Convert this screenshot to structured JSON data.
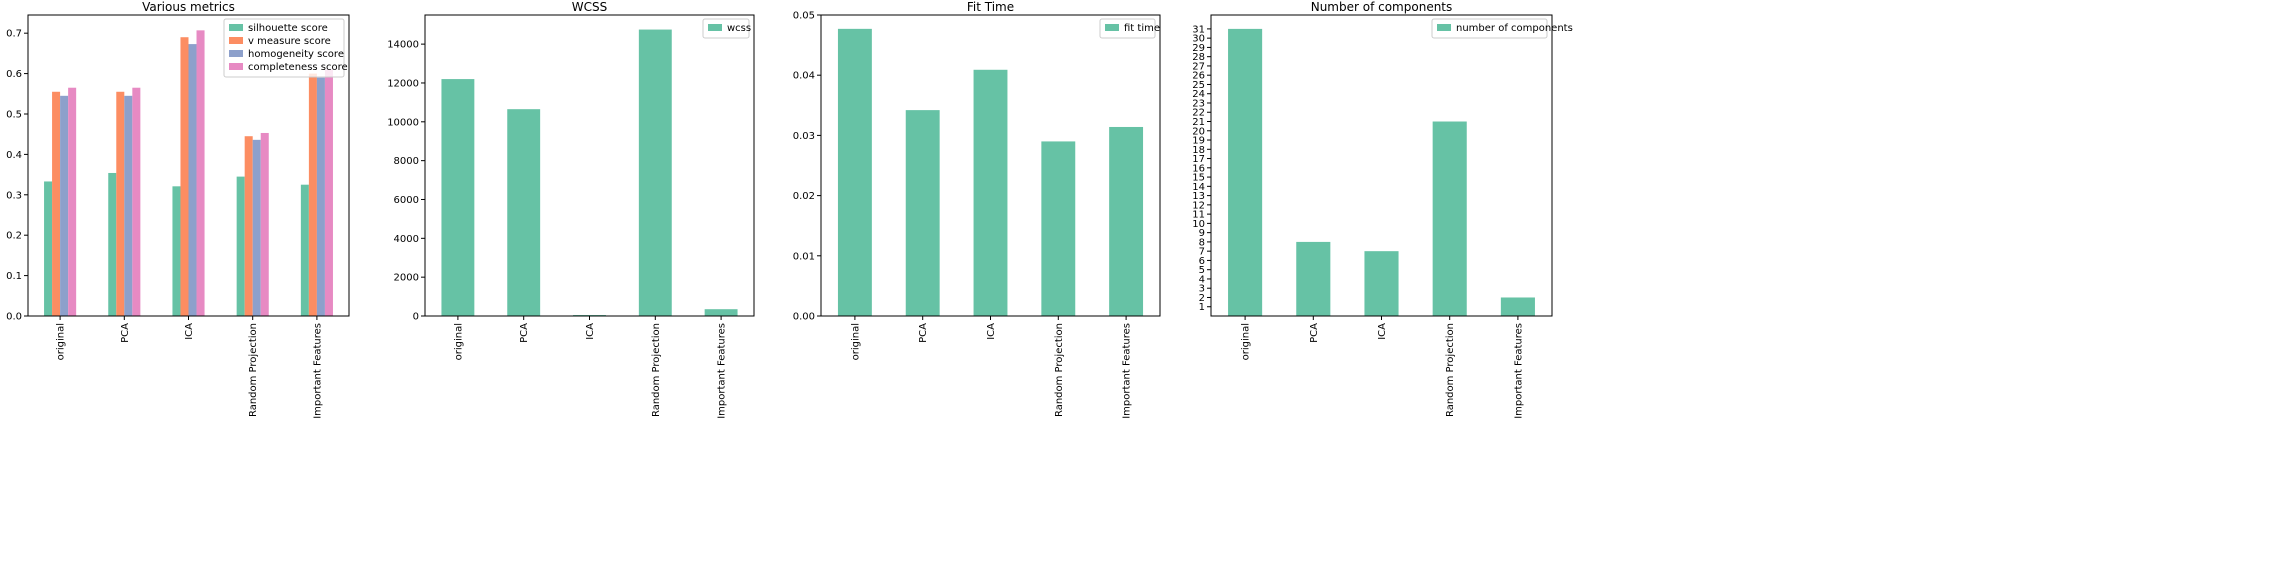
{
  "chart_data": [
    {
      "type": "bar",
      "title": "Various metrics",
      "categories": [
        "original",
        "PCA",
        "ICA",
        "Random Projection",
        "Important Features"
      ],
      "series": [
        {
          "name": "silhouette score",
          "color": "#66c2a5",
          "values": [
            0.333,
            0.354,
            0.321,
            0.345,
            0.325
          ]
        },
        {
          "name": "v measure score",
          "color": "#fc8d62",
          "values": [
            0.555,
            0.555,
            0.69,
            0.445,
            0.6
          ]
        },
        {
          "name": "homogeneity score",
          "color": "#8da0cb",
          "values": [
            0.545,
            0.545,
            0.673,
            0.436,
            0.59
          ]
        },
        {
          "name": "completeness score",
          "color": "#e78ac3",
          "values": [
            0.565,
            0.565,
            0.707,
            0.453,
            0.61
          ]
        }
      ],
      "ylim": [
        0,
        0.745
      ],
      "yticks": [
        0.0,
        0.1,
        0.2,
        0.3,
        0.4,
        0.5,
        0.6,
        0.7
      ],
      "ytick_labels": [
        "0.0",
        "0.1",
        "0.2",
        "0.3",
        "0.4",
        "0.5",
        "0.6",
        "0.7"
      ],
      "legend": "top-right"
    },
    {
      "type": "bar",
      "title": "WCSS",
      "categories": [
        "original",
        "PCA",
        "ICA",
        "Random Projection",
        "Important Features"
      ],
      "series": [
        {
          "name": "wcss",
          "color": "#66c2a5",
          "values": [
            12200,
            10650,
            50,
            14750,
            350
          ]
        }
      ],
      "ylim": [
        0,
        15500
      ],
      "yticks": [
        0,
        2000,
        4000,
        6000,
        8000,
        10000,
        12000,
        14000
      ],
      "ytick_labels": [
        "0",
        "2000",
        "4000",
        "6000",
        "8000",
        "10000",
        "12000",
        "14000"
      ],
      "legend": "top-right"
    },
    {
      "type": "bar",
      "title": "Fit Time",
      "categories": [
        "original",
        "PCA",
        "ICA",
        "Random Projection",
        "Important Features"
      ],
      "series": [
        {
          "name": "fit time",
          "color": "#66c2a5",
          "values": [
            0.0477,
            0.0342,
            0.0409,
            0.029,
            0.0314
          ]
        }
      ],
      "ylim": [
        0,
        0.05
      ],
      "yticks": [
        0.0,
        0.01,
        0.02,
        0.03,
        0.04,
        0.05
      ],
      "ytick_labels": [
        "0.00",
        "0.01",
        "0.02",
        "0.03",
        "0.04",
        "0.05"
      ],
      "legend": "top-right"
    },
    {
      "type": "bar",
      "title": "Number of components",
      "categories": [
        "original",
        "PCA",
        "ICA",
        "Random Projection",
        "Important Features"
      ],
      "series": [
        {
          "name": "number of components",
          "color": "#66c2a5",
          "values": [
            31,
            8,
            7,
            21,
            2
          ]
        }
      ],
      "ylim": [
        0,
        32.5
      ],
      "yticks": [
        1,
        2,
        3,
        4,
        5,
        6,
        7,
        8,
        9,
        10,
        11,
        12,
        13,
        14,
        15,
        16,
        17,
        18,
        19,
        20,
        21,
        22,
        23,
        24,
        25,
        26,
        27,
        28,
        29,
        30,
        31
      ],
      "ytick_labels": [
        "1",
        "2",
        "3",
        "4",
        "5",
        "6",
        "7",
        "8",
        "9",
        "10",
        "11",
        "12",
        "13",
        "14",
        "15",
        "16",
        "17",
        "18",
        "19",
        "20",
        "21",
        "22",
        "23",
        "24",
        "25",
        "26",
        "27",
        "28",
        "29",
        "30",
        "31"
      ],
      "legend": "top-right"
    }
  ]
}
